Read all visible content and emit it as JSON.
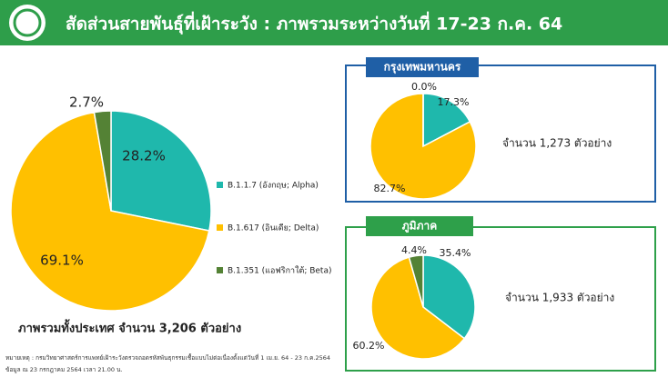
{
  "header": {
    "title": "สัดส่วนสายพันธุ์ที่เฝ้าระวัง : ภาพรวมระหว่างวันที่ 17-23 ก.ค. 64"
  },
  "chart_data": [
    {
      "type": "pie",
      "title": "ภาพรวมทั้งประเทศ จำนวน 3,206 ตัวอย่าง",
      "categories": [
        "B.1.1.7 (อังกฤษ; Alpha)",
        "B.1.617 (อินเดีย; Delta)",
        "B.1.351 (แอฟริกาใต้; Beta)"
      ],
      "values": [
        28.2,
        69.1,
        2.7
      ],
      "value_labels": [
        "28.2%",
        "69.1%",
        "2.7%"
      ],
      "colors": [
        "#1fb8ac",
        "#ffc000",
        "#548235"
      ],
      "legend": "right"
    },
    {
      "type": "pie",
      "title": "กรุงเทพมหานคร",
      "annotation": "จำนวน 1,273 ตัวอย่าง",
      "values": [
        17.3,
        82.7,
        0.0
      ],
      "value_labels": [
        "17.3%",
        "82.7%",
        "0.0%"
      ],
      "colors": [
        "#1fb8ac",
        "#ffc000",
        "#548235"
      ]
    },
    {
      "type": "pie",
      "title": "ภูมิภาค",
      "annotation": "จำนวน 1,933 ตัวอย่าง",
      "values": [
        35.4,
        60.2,
        4.4
      ],
      "value_labels": [
        "35.4%",
        "60.2%",
        "4.4%"
      ],
      "colors": [
        "#1fb8ac",
        "#ffc000",
        "#548235"
      ]
    }
  ],
  "notes": [
    "หมายเหตุ : กรมวิทยาศาสตร์การแพทย์เฝ้าระวังตรวจถอดรหัสพันธุกรรมเชื้อแบบไม่ต่อเนื่องตั้งแต่วันที่ 1 เม.ย. 64 - 23 ก.ค.2564",
    "ข้อมูล ณ 23 กรกฎาคม 2564 เวลา 21.00 น."
  ]
}
